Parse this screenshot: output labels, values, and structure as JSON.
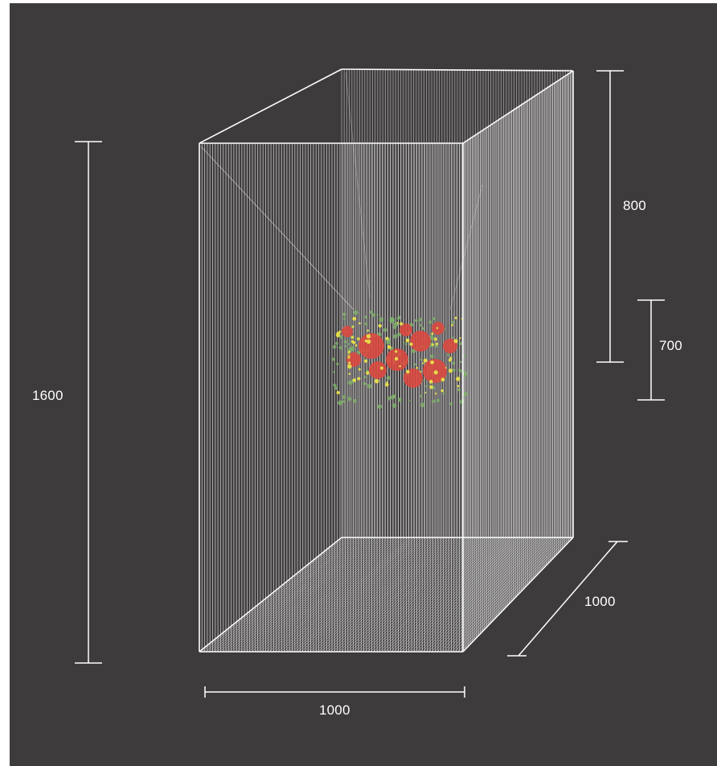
{
  "dimensions": {
    "height_total": "1600",
    "height_top": "800",
    "height_inner": "700",
    "depth": "1000",
    "width": "1000"
  },
  "colors": {
    "background": "#3e3b3c",
    "wire": "#ffffff",
    "flower_red": "#e0473d",
    "flower_yellow": "#e8e04a",
    "leaf_green": "#7fb36a"
  },
  "icons": [
    "wire-cube",
    "flower-cluster",
    "dimension-bar"
  ]
}
